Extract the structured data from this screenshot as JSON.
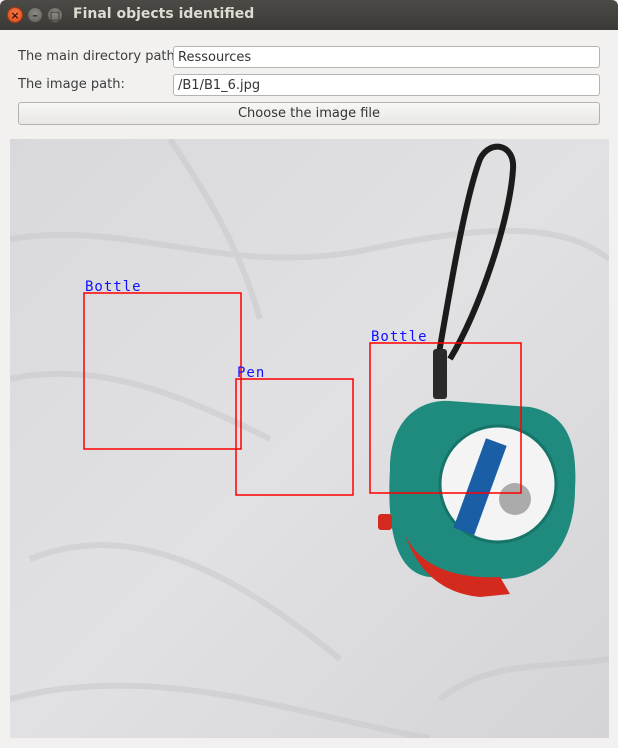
{
  "window": {
    "title": "Final objects identified",
    "close_glyph": "×",
    "min_glyph": "–",
    "max_glyph": "□"
  },
  "form": {
    "directory_label": "The main directory path:",
    "directory_value": "Ressources",
    "image_label": "The image path:",
    "image_value": "/B1/B1_6.jpg",
    "choose_button": "Choose the image file"
  },
  "detections": [
    {
      "label": "Bottle"
    },
    {
      "label": "Pen"
    },
    {
      "label": "Bottle"
    }
  ],
  "colors": {
    "box": "#ff0000",
    "label_text": "#1010ff",
    "tape_body": "#1f8a7e",
    "tape_accent": "#d42a1e"
  }
}
